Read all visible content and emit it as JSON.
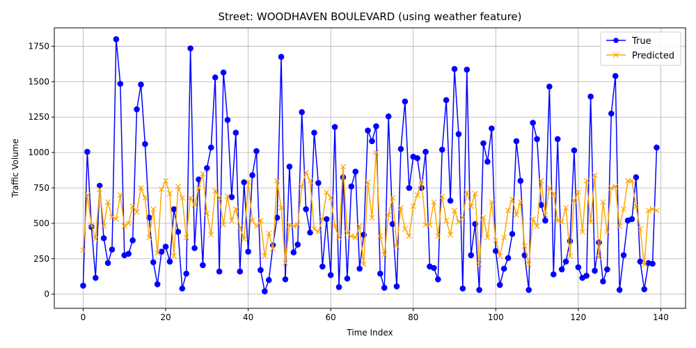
{
  "chart_data": {
    "type": "line",
    "title": "Street: WOODHAVEN BOULEVARD (using weather feature)",
    "xlabel": "Time Index",
    "ylabel": "Traffic Volume",
    "xlim": [
      -7,
      146
    ],
    "ylim": [
      -100,
      1880
    ],
    "xticks": [
      0,
      20,
      40,
      60,
      80,
      100,
      120,
      140
    ],
    "yticks": [
      0,
      250,
      500,
      750,
      1000,
      1250,
      1500,
      1750
    ],
    "grid": true,
    "legend_position": "top-right",
    "series": [
      {
        "name": "True",
        "color": "#0000ff",
        "marker": "circle",
        "values": [
          60,
          1005,
          475,
          115,
          765,
          395,
          220,
          315,
          1800,
          1485,
          275,
          285,
          380,
          1305,
          1480,
          1060,
          540,
          225,
          70,
          300,
          335,
          230,
          600,
          440,
          40,
          145,
          1735,
          325,
          810,
          205,
          890,
          1035,
          1530,
          160,
          1565,
          1230,
          685,
          1140,
          160,
          790,
          300,
          840,
          1010,
          170,
          20,
          100,
          345,
          540,
          1675,
          105,
          900,
          295,
          350,
          1285,
          600,
          435,
          1140,
          785,
          195,
          530,
          135,
          1180,
          50,
          825,
          110,
          760,
          865,
          180,
          420,
          1155,
          1080,
          1185,
          145,
          45,
          1255,
          495,
          55,
          1025,
          1360,
          750,
          970,
          960,
          750,
          1005,
          195,
          185,
          105,
          1020,
          1370,
          660,
          1590,
          1130,
          40,
          1585,
          275,
          495,
          30,
          1065,
          935,
          1170,
          305,
          65,
          180,
          255,
          425,
          1080,
          800,
          275,
          30,
          1210,
          1095,
          630,
          520,
          1465,
          140,
          1095,
          175,
          230,
          375,
          1015,
          190,
          115,
          130,
          1395,
          165,
          365,
          90,
          175,
          1275,
          1540,
          30,
          275,
          520,
          530,
          825,
          230,
          35,
          220,
          215,
          1035
        ]
      },
      {
        "name": "Predicted",
        "color": "#ffa500",
        "marker": "x",
        "values": [
          310,
          700,
          490,
          390,
          740,
          480,
          650,
          545,
          530,
          700,
          480,
          500,
          620,
          580,
          750,
          680,
          400,
          600,
          290,
          740,
          800,
          710,
          270,
          760,
          680,
          400,
          680,
          630,
          750,
          850,
          570,
          420,
          730,
          680,
          490,
          690,
          520,
          600,
          470,
          390,
          790,
          520,
          480,
          520,
          270,
          430,
          320,
          800,
          610,
          220,
          490,
          480,
          490,
          760,
          860,
          800,
          460,
          440,
          530,
          720,
          680,
          480,
          400,
          900,
          430,
          410,
          400,
          480,
          210,
          790,
          540,
          1000,
          410,
          280,
          560,
          680,
          340,
          610,
          460,
          410,
          620,
          700,
          800,
          490,
          490,
          650,
          410,
          690,
          520,
          420,
          590,
          510,
          540,
          720,
          620,
          710,
          210,
          540,
          400,
          650,
          380,
          270,
          400,
          590,
          670,
          560,
          650,
          340,
          210,
          530,
          480,
          800,
          560,
          750,
          710,
          520,
          510,
          610,
          270,
          660,
          720,
          440,
          800,
          510,
          840,
          260,
          650,
          440,
          750,
          760,
          480,
          600,
          800,
          800,
          620,
          460,
          210,
          590,
          600,
          590
        ]
      }
    ]
  }
}
